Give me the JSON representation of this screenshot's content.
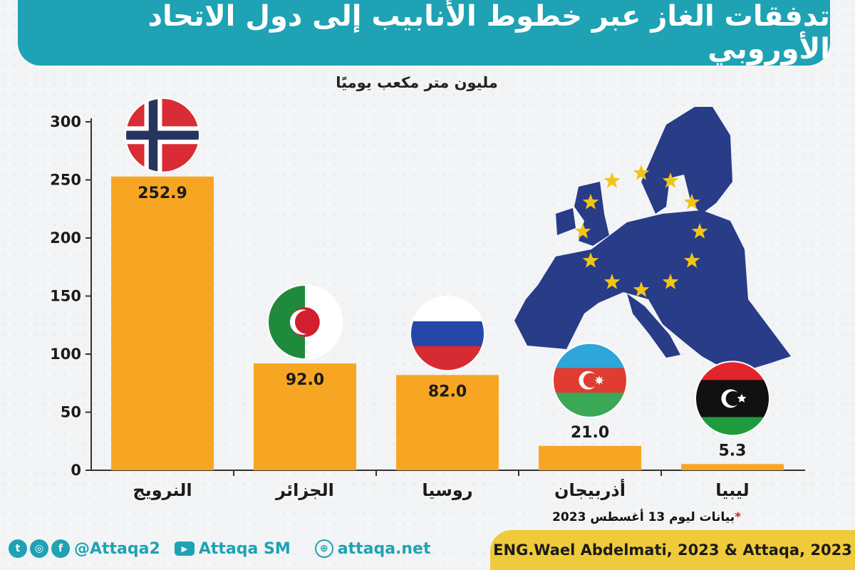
{
  "title": "تدفقات الغاز عبر خطوط الأنابيب إلى دول الاتحاد الأوروبي",
  "colors": {
    "accent": "#1ea2b4",
    "bar": "#f7a623",
    "credit_bg": "#efca3a",
    "eu_blue": "#283c87",
    "eu_star": "#f0c419"
  },
  "chart_data": {
    "type": "bar",
    "title": "تدفقات الغاز عبر خطوط الأنابيب إلى دول الاتحاد الأوروبي",
    "ylabel": "مليون متر مكعب يوميًا",
    "xlabel": "",
    "categories": [
      "النرويج",
      "الجزائر",
      "روسيا",
      "أذربيجان",
      "ليبيا"
    ],
    "values": [
      252.9,
      92.0,
      82.0,
      21.0,
      5.3
    ],
    "value_labels": [
      "252.9",
      "92.0",
      "82.0",
      "21.0",
      "5.3"
    ],
    "ylim": [
      0,
      300
    ],
    "yticks": [
      0,
      50,
      100,
      150,
      200,
      250,
      300
    ],
    "grid": false,
    "legend": "none",
    "flags": [
      "norway",
      "algeria",
      "russia",
      "azerbaijan",
      "libya"
    ]
  },
  "footnote": {
    "star": "*",
    "text": "بيانات ليوم 13 أغسطس 2023"
  },
  "footer": {
    "social_handle": "@Attaqa2",
    "youtube_handle": "Attaqa SM",
    "website": "attaqa.net",
    "credit": "ENG.Wael Abdelmati, 2023 & Attaqa, 2023",
    "icons": [
      "twitter-icon",
      "instagram-icon",
      "facebook-icon",
      "youtube-icon",
      "globe-icon"
    ]
  }
}
